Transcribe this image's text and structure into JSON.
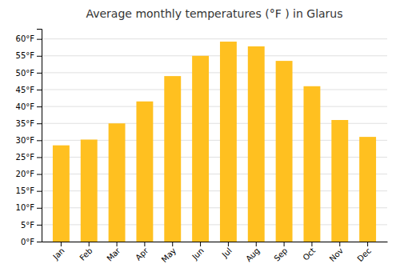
{
  "chart_data": {
    "type": "bar",
    "title": "Average monthly temperatures (°F ) in Glarus",
    "categories": [
      "Jan",
      "Feb",
      "Mar",
      "Apr",
      "May",
      "Jun",
      "Jul",
      "Aug",
      "Sep",
      "Oct",
      "Nov",
      "Dec"
    ],
    "values": [
      28.5,
      30.2,
      35.0,
      41.5,
      49.0,
      55.0,
      59.2,
      57.8,
      53.5,
      46.0,
      36.0,
      31.0
    ],
    "color": "#FFC020",
    "ylim": [
      0,
      63
    ],
    "yticks": [
      {
        "value": 0,
        "label": "0°F"
      },
      {
        "value": 5,
        "label": "5°F"
      },
      {
        "value": 10,
        "label": "10°F"
      },
      {
        "value": 15,
        "label": "15°F"
      },
      {
        "value": 20,
        "label": "20°F"
      },
      {
        "value": 25,
        "label": "25°F"
      },
      {
        "value": 30,
        "label": "30°F"
      },
      {
        "value": 35,
        "label": "35°F"
      },
      {
        "value": 40,
        "label": "40°F"
      },
      {
        "value": 45,
        "label": "45°F"
      },
      {
        "value": 50,
        "label": "50°F"
      },
      {
        "value": 55,
        "label": "55°F"
      },
      {
        "value": 60,
        "label": "60°F"
      }
    ],
    "grid": true
  }
}
